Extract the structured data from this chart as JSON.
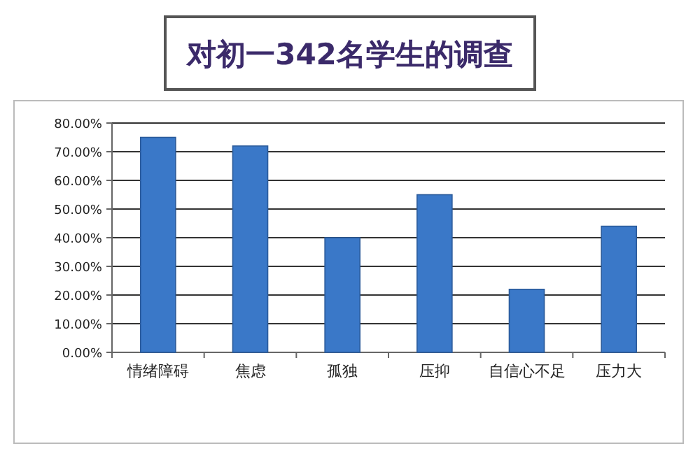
{
  "chart_data": {
    "type": "bar",
    "title": "对初一342名学生的调查",
    "categories": [
      "情绪障碍",
      "焦虑",
      "孤独",
      "压抑",
      "自信心不足",
      "压力大"
    ],
    "values": [
      75,
      72,
      40,
      55,
      22,
      44
    ],
    "color": "#3a78c8",
    "ylim": [
      0,
      80
    ],
    "yticks": [
      {
        "value": 0,
        "label": "0.00%"
      },
      {
        "value": 10,
        "label": "10.00%"
      },
      {
        "value": 20,
        "label": "20.00%"
      },
      {
        "value": 30,
        "label": "30.00%"
      },
      {
        "value": 40,
        "label": "40.00%"
      },
      {
        "value": 50,
        "label": "50.00%"
      },
      {
        "value": 60,
        "label": "60.00%"
      },
      {
        "value": 70,
        "label": "70.00%"
      },
      {
        "value": 80,
        "label": "80.00%"
      }
    ],
    "grid": "y"
  }
}
